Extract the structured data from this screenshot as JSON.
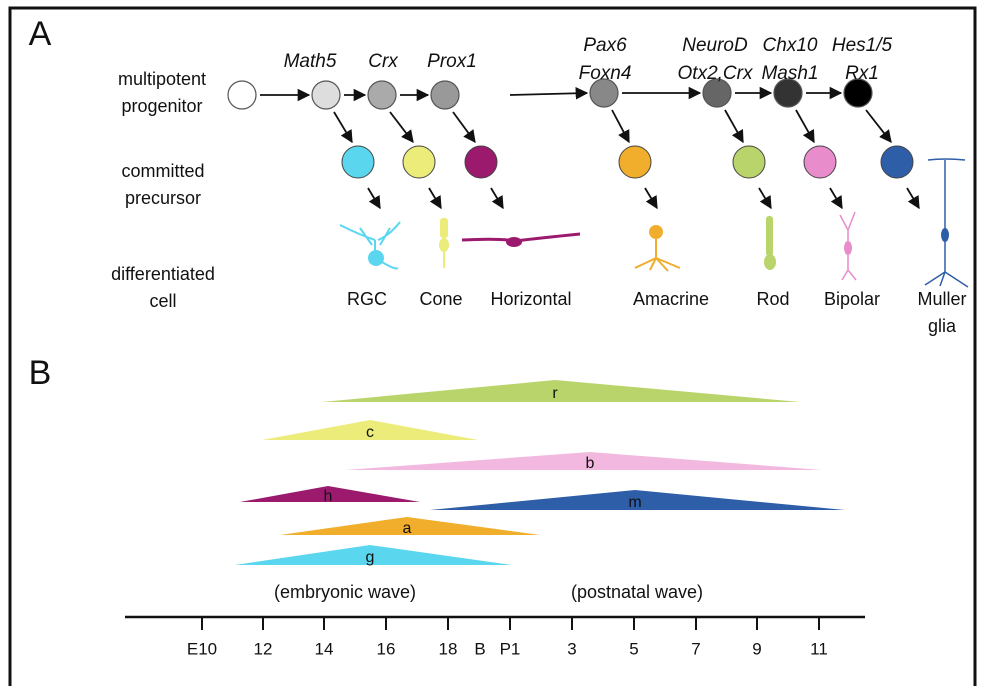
{
  "panel_a": {
    "label": "A",
    "row_labels": [
      [
        "multipotent",
        "progenitor"
      ],
      [
        "committed",
        "precursor"
      ],
      [
        "differentiated",
        "cell"
      ]
    ],
    "genes": [
      [
        "Math5"
      ],
      [
        "Crx"
      ],
      [
        "Prox1"
      ],
      [
        "Pax6",
        "Foxn4"
      ],
      [
        "NeuroD",
        "Otx2,Crx"
      ],
      [
        "Chx10",
        "Mash1"
      ],
      [
        "Hes1/5",
        "Rx1"
      ]
    ],
    "cells": [
      [
        "RGC"
      ],
      [
        "Cone"
      ],
      [
        "Horizontal"
      ],
      [
        "Amacrine"
      ],
      [
        "Rod"
      ],
      [
        "Bipolar"
      ],
      [
        "Muller",
        "glia"
      ]
    ]
  },
  "panel_b": {
    "label": "B",
    "waves": [
      "r",
      "c",
      "b",
      "h",
      "m",
      "a",
      "g"
    ],
    "wave_labels": [
      "(embryonic wave)",
      "(postnatal wave)"
    ],
    "ticks": [
      "E10",
      "12",
      "14",
      "16",
      "18",
      "B",
      "P1",
      "3",
      "5",
      "7",
      "9",
      "11"
    ]
  }
}
